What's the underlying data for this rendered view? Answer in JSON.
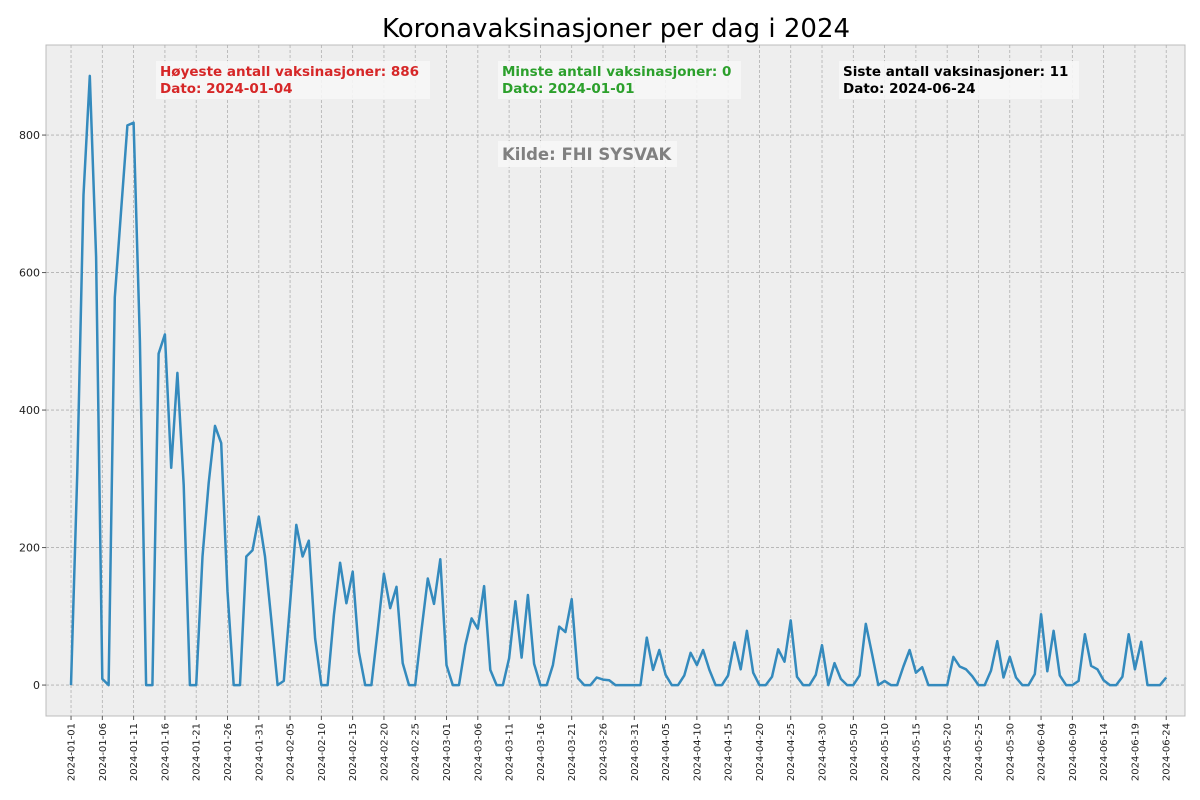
{
  "chart_data": {
    "type": "line",
    "title": "Koronavaksinasjoner per dag i 2024",
    "xlabel": "",
    "ylabel": "",
    "ylim": [
      -45,
      931
    ],
    "xlim": [
      "2023-12-28",
      "2024-06-27"
    ],
    "grid": true,
    "line_color": "#348abd",
    "background_color": "#eeeeee",
    "yticks": [
      0,
      200,
      400,
      600,
      800
    ],
    "xtick_labels": [
      "2024-01-01",
      "2024-01-06",
      "2024-01-11",
      "2024-01-16",
      "2024-01-21",
      "2024-01-26",
      "2024-01-31",
      "2024-02-05",
      "2024-02-10",
      "2024-02-15",
      "2024-02-20",
      "2024-02-25",
      "2024-03-01",
      "2024-03-06",
      "2024-03-11",
      "2024-03-16",
      "2024-03-21",
      "2024-03-26",
      "2024-03-31",
      "2024-04-05",
      "2024-04-10",
      "2024-04-15",
      "2024-04-20",
      "2024-04-25",
      "2024-04-30",
      "2024-05-05",
      "2024-05-10",
      "2024-05-15",
      "2024-05-20",
      "2024-05-25",
      "2024-05-30",
      "2024-06-04",
      "2024-06-09",
      "2024-06-14",
      "2024-06-19",
      "2024-06-24"
    ],
    "x": [
      "2024-01-01",
      "2024-01-02",
      "2024-01-03",
      "2024-01-04",
      "2024-01-05",
      "2024-01-06",
      "2024-01-07",
      "2024-01-08",
      "2024-01-09",
      "2024-01-10",
      "2024-01-11",
      "2024-01-12",
      "2024-01-13",
      "2024-01-14",
      "2024-01-15",
      "2024-01-16",
      "2024-01-17",
      "2024-01-18",
      "2024-01-19",
      "2024-01-20",
      "2024-01-21",
      "2024-01-22",
      "2024-01-23",
      "2024-01-24",
      "2024-01-25",
      "2024-01-26",
      "2024-01-27",
      "2024-01-28",
      "2024-01-29",
      "2024-01-30",
      "2024-01-31",
      "2024-02-01",
      "2024-02-02",
      "2024-02-03",
      "2024-02-04",
      "2024-02-05",
      "2024-02-06",
      "2024-02-07",
      "2024-02-08",
      "2024-02-09",
      "2024-02-10",
      "2024-02-11",
      "2024-02-12",
      "2024-02-13",
      "2024-02-14",
      "2024-02-15",
      "2024-02-16",
      "2024-02-17",
      "2024-02-18",
      "2024-02-19",
      "2024-02-20",
      "2024-02-21",
      "2024-02-22",
      "2024-02-23",
      "2024-02-24",
      "2024-02-25",
      "2024-02-26",
      "2024-02-27",
      "2024-02-28",
      "2024-02-29",
      "2024-03-01",
      "2024-03-02",
      "2024-03-03",
      "2024-03-04",
      "2024-03-05",
      "2024-03-06",
      "2024-03-07",
      "2024-03-08",
      "2024-03-09",
      "2024-03-10",
      "2024-03-11",
      "2024-03-12",
      "2024-03-13",
      "2024-03-14",
      "2024-03-15",
      "2024-03-16",
      "2024-03-17",
      "2024-03-18",
      "2024-03-19",
      "2024-03-20",
      "2024-03-21",
      "2024-03-22",
      "2024-03-23",
      "2024-03-24",
      "2024-03-25",
      "2024-03-26",
      "2024-03-27",
      "2024-03-28",
      "2024-03-29",
      "2024-03-30",
      "2024-03-31",
      "2024-04-01",
      "2024-04-02",
      "2024-04-03",
      "2024-04-04",
      "2024-04-05",
      "2024-04-06",
      "2024-04-07",
      "2024-04-08",
      "2024-04-09",
      "2024-04-10",
      "2024-04-11",
      "2024-04-12",
      "2024-04-13",
      "2024-04-14",
      "2024-04-15",
      "2024-04-16",
      "2024-04-17",
      "2024-04-18",
      "2024-04-19",
      "2024-04-20",
      "2024-04-21",
      "2024-04-22",
      "2024-04-23",
      "2024-04-24",
      "2024-04-25",
      "2024-04-26",
      "2024-04-27",
      "2024-04-28",
      "2024-04-29",
      "2024-04-30",
      "2024-05-01",
      "2024-05-02",
      "2024-05-03",
      "2024-05-04",
      "2024-05-05",
      "2024-05-06",
      "2024-05-07",
      "2024-05-08",
      "2024-05-09",
      "2024-05-10",
      "2024-05-11",
      "2024-05-12",
      "2024-05-13",
      "2024-05-14",
      "2024-05-15",
      "2024-05-16",
      "2024-05-17",
      "2024-05-18",
      "2024-05-19",
      "2024-05-20",
      "2024-05-21",
      "2024-05-22",
      "2024-05-23",
      "2024-05-24",
      "2024-05-25",
      "2024-05-26",
      "2024-05-27",
      "2024-05-28",
      "2024-05-29",
      "2024-05-30",
      "2024-05-31",
      "2024-06-01",
      "2024-06-02",
      "2024-06-03",
      "2024-06-04",
      "2024-06-05",
      "2024-06-06",
      "2024-06-07",
      "2024-06-08",
      "2024-06-09",
      "2024-06-10",
      "2024-06-11",
      "2024-06-12",
      "2024-06-13",
      "2024-06-14",
      "2024-06-15",
      "2024-06-16",
      "2024-06-17",
      "2024-06-18",
      "2024-06-19",
      "2024-06-20",
      "2024-06-21",
      "2024-06-22",
      "2024-06-23",
      "2024-06-24"
    ],
    "series": [
      {
        "values": [
          0,
          310,
          713,
          886,
          623,
          9,
          0,
          564,
          690,
          814,
          818,
          500,
          0,
          0,
          482,
          510,
          316,
          454,
          291,
          0,
          0,
          187,
          294,
          377,
          352,
          136,
          0,
          0,
          187,
          196,
          245,
          187,
          95,
          0,
          6,
          119,
          233,
          187,
          210,
          68,
          0,
          0,
          102,
          178,
          119,
          165,
          48,
          0,
          0,
          80,
          162,
          112,
          143,
          32,
          0,
          0,
          80,
          155,
          118,
          183,
          29,
          0,
          0,
          58,
          97,
          82,
          144,
          22,
          0,
          0,
          39,
          122,
          40,
          131,
          31,
          0,
          0,
          29,
          85,
          77,
          125,
          10,
          0,
          0,
          11,
          8,
          7,
          0,
          0,
          0,
          0,
          0,
          69,
          22,
          51,
          15,
          0,
          0,
          14,
          47,
          29,
          51,
          22,
          0,
          0,
          14,
          62,
          23,
          79,
          18,
          0,
          0,
          12,
          52,
          34,
          94,
          12,
          0,
          0,
          15,
          58,
          0,
          32,
          9,
          0,
          0,
          14,
          89,
          45,
          0,
          6,
          0,
          0,
          27,
          51,
          18,
          26,
          0,
          0,
          0,
          0,
          41,
          27,
          23,
          13,
          0,
          0,
          21,
          64,
          11,
          41,
          11,
          0,
          0,
          16,
          103,
          20,
          79,
          14,
          0,
          0,
          6,
          74,
          28,
          23,
          7,
          0,
          0,
          12,
          74,
          23,
          63,
          0,
          0,
          0,
          11
        ]
      }
    ],
    "annotations": [
      {
        "line1": "Høyeste antall vaksinasjoner: 886",
        "line2": "Dato: 2024-01-04",
        "color": "#d62728"
      },
      {
        "line1": "Minste antall vaksinasjoner: 0",
        "line2": "Dato: 2024-01-01",
        "color": "#2ca02c"
      },
      {
        "line1": "Siste antall vaksinasjoner: 11",
        "line2": "Dato: 2024-06-24",
        "color": "#000000"
      }
    ],
    "source": "Kilde: FHI SYSVAK"
  }
}
